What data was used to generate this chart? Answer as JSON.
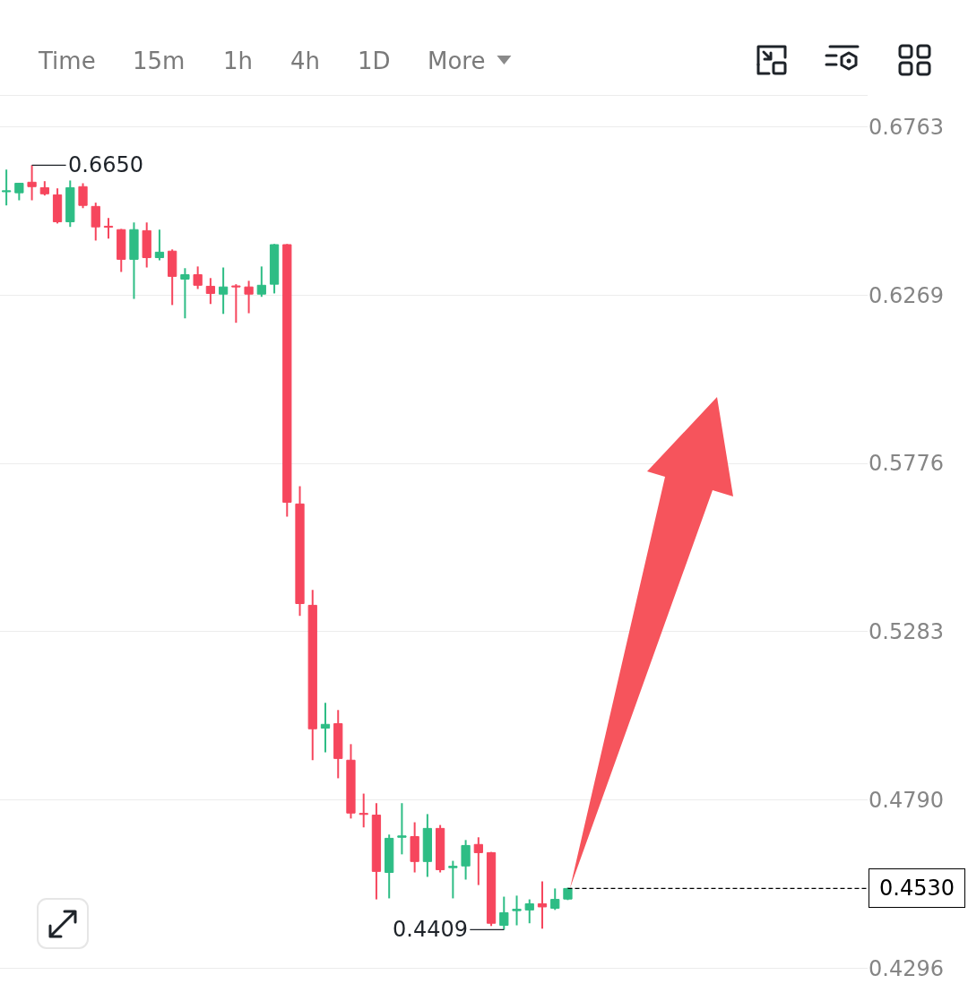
{
  "chart_data": {
    "type": "candlestick",
    "categories": [
      null,
      null,
      null,
      null,
      null,
      null,
      null,
      null,
      null,
      null,
      null,
      null,
      null,
      null,
      null,
      null,
      null,
      null,
      null,
      null,
      null,
      null,
      null,
      null,
      null,
      null,
      null,
      null,
      null,
      null,
      null,
      null,
      null,
      null,
      null,
      null,
      null,
      null,
      null,
      null,
      null,
      null,
      null,
      null,
      null,
      null,
      null,
      null,
      null,
      null,
      null,
      null,
      null,
      null,
      null,
      null,
      null,
      null,
      null,
      null,
      null,
      null,
      null,
      null,
      null,
      null,
      null,
      null
    ],
    "ohlc": [
      [
        0.6572,
        0.6637,
        0.6532,
        0.6575
      ],
      [
        0.6569,
        0.6598,
        0.6547,
        0.6597
      ],
      [
        0.66,
        0.665,
        0.6547,
        0.6587
      ],
      [
        0.6584,
        0.6603,
        0.6561,
        0.6566
      ],
      [
        0.6563,
        0.6582,
        0.6479,
        0.6484
      ],
      [
        0.6484,
        0.6605,
        0.6469,
        0.6584
      ],
      [
        0.6587,
        0.6597,
        0.6524,
        0.6532
      ],
      [
        0.6529,
        0.654,
        0.6429,
        0.6469
      ],
      [
        0.6471,
        0.6495,
        0.6435,
        0.6468
      ],
      [
        0.6461,
        0.6463,
        0.6337,
        0.6374
      ],
      [
        0.6374,
        0.6482,
        0.6258,
        0.6461
      ],
      [
        0.6458,
        0.6482,
        0.635,
        0.6379
      ],
      [
        0.6379,
        0.6461,
        0.6371,
        0.6395
      ],
      [
        0.6398,
        0.6403,
        0.624,
        0.6324
      ],
      [
        0.6316,
        0.6348,
        0.6201,
        0.6329
      ],
      [
        0.6329,
        0.6353,
        0.6287,
        0.6298
      ],
      [
        0.6295,
        0.6319,
        0.6243,
        0.6274
      ],
      [
        0.6272,
        0.635,
        0.6214,
        0.6293
      ],
      [
        0.6296,
        0.6301,
        0.6188,
        0.6293
      ],
      [
        0.6293,
        0.6311,
        0.6216,
        0.6272
      ],
      [
        0.6272,
        0.6353,
        0.6264,
        0.6298
      ],
      [
        0.6301,
        0.6419,
        0.6274,
        0.6417
      ],
      [
        0.6417,
        0.6419,
        0.562,
        0.5662
      ],
      [
        0.5657,
        0.5709,
        0.5329,
        0.5365
      ],
      [
        0.536,
        0.5405,
        0.4906,
        0.4998
      ],
      [
        0.5,
        0.5074,
        0.4929,
        0.5011
      ],
      [
        0.5013,
        0.5053,
        0.4853,
        0.4911
      ],
      [
        0.4906,
        0.4953,
        0.4735,
        0.4751
      ],
      [
        0.475,
        0.4808,
        0.4709,
        0.4747
      ],
      [
        0.4745,
        0.478,
        0.4498,
        0.458
      ],
      [
        0.4577,
        0.4688,
        0.4501,
        0.4677
      ],
      [
        0.468,
        0.478,
        0.463,
        0.4684
      ],
      [
        0.4682,
        0.4724,
        0.4577,
        0.4609
      ],
      [
        0.4609,
        0.4748,
        0.4564,
        0.4706
      ],
      [
        0.4706,
        0.4716,
        0.4577,
        0.4585
      ],
      [
        0.4591,
        0.4611,
        0.4501,
        0.4595
      ],
      [
        0.4596,
        0.4672,
        0.4556,
        0.4656
      ],
      [
        0.4659,
        0.468,
        0.454,
        0.4635
      ],
      [
        0.4635,
        0.4637,
        0.442,
        0.4428
      ],
      [
        0.4422,
        0.4506,
        0.4409,
        0.4459
      ],
      [
        0.4465,
        0.4509,
        0.4422,
        0.4469
      ],
      [
        0.4467,
        0.4498,
        0.4428,
        0.4485
      ],
      [
        0.4485,
        0.4551,
        0.4412,
        0.4476
      ],
      [
        0.4472,
        0.453,
        0.4467,
        0.4498
      ],
      [
        0.4499,
        0.4532,
        0.4496,
        0.453
      ],
      null,
      null,
      null,
      null,
      null,
      null,
      null,
      null,
      null,
      null,
      null,
      null,
      null,
      null,
      null,
      null,
      null,
      null,
      null,
      null,
      null,
      null,
      null
    ],
    "colors": [
      "#2ebd85",
      "#2ebd85",
      "#f6465d",
      "#f6465d",
      "#f6465d",
      "#2ebd85",
      "#f6465d",
      "#f6465d",
      "#f6465d",
      "#f6465d",
      "#2ebd85",
      "#f6465d",
      "#2ebd85",
      "#f6465d",
      "#2ebd85",
      "#f6465d",
      "#f6465d",
      "#2ebd85",
      "#f6465d",
      "#f6465d",
      "#2ebd85",
      "#2ebd85",
      "#f6465d",
      "#f6465d",
      "#f6465d",
      "#2ebd85",
      "#f6465d",
      "#f6465d",
      "#f6465d",
      "#f6465d",
      "#2ebd85",
      "#2ebd85",
      "#f6465d",
      "#2ebd85",
      "#f6465d",
      "#2ebd85",
      "#2ebd85",
      "#f6465d",
      "#f6465d",
      "#2ebd85",
      "#2ebd85",
      "#2ebd85",
      "#f6465d",
      "#2ebd85",
      "#2ebd85",
      null,
      null,
      null,
      null,
      null,
      null,
      null,
      null,
      null,
      null,
      null,
      null,
      null,
      null,
      null,
      null,
      null,
      null,
      null,
      null,
      null,
      null,
      null
    ],
    "ylim": [
      0.425,
      0.6853
    ],
    "yticks": [
      {
        "value": 0.6763,
        "label": "0.6763"
      },
      {
        "value": 0.6269,
        "label": "0.6269"
      },
      {
        "value": 0.5776,
        "label": "0.5776"
      },
      {
        "value": 0.5283,
        "label": "0.5283"
      },
      {
        "value": 0.479,
        "label": "0.4790"
      },
      {
        "value": 0.4296,
        "label": "0.4296"
      }
    ],
    "grid": "y",
    "ref_lines": [
      {
        "axis": "y",
        "value": 0.453,
        "label": "0.4530",
        "color": "#000000",
        "line_style": "dashed"
      }
    ],
    "annotations": [
      "Time",
      "15m",
      "1h",
      "4h",
      "1D",
      "More",
      "0.6650",
      "0.4409"
    ]
  }
}
